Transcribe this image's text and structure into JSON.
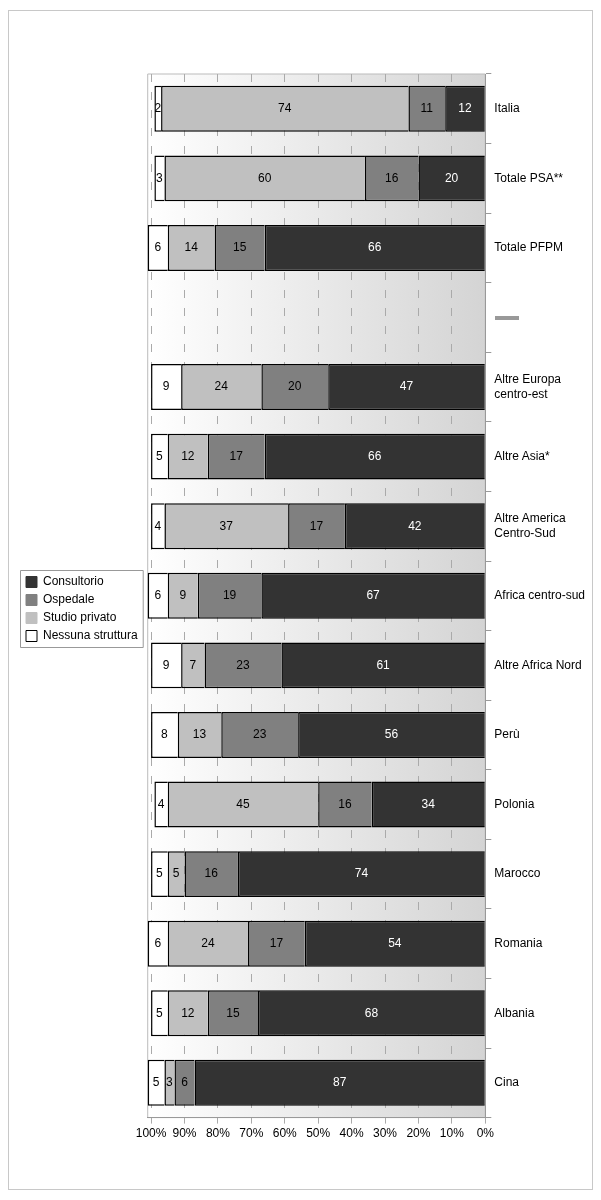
{
  "chart_data": {
    "type": "bar",
    "stacked": true,
    "orientation": "horizontal",
    "categories": [
      "Italia",
      "Totale PSA**",
      "Totale PFPM",
      null,
      "Altre Europa centro-est",
      "Altre Asia*",
      "Altre America Centro-Sud",
      "Africa centro-sud",
      "Altre Africa Nord",
      "Perù",
      "Polonia",
      "Marocco",
      "Romania",
      "Albania",
      "Cina"
    ],
    "series": [
      {
        "name": "Consultorio",
        "color": "#333333",
        "values": [
          12,
          20,
          66,
          null,
          47,
          66,
          42,
          67,
          61,
          56,
          34,
          74,
          54,
          68,
          87
        ]
      },
      {
        "name": "Ospedale",
        "color": "#808080",
        "values": [
          11,
          16,
          15,
          null,
          20,
          17,
          17,
          19,
          23,
          23,
          16,
          16,
          17,
          15,
          6
        ]
      },
      {
        "name": "Studio privato",
        "color": "#c0c0c0",
        "values": [
          74,
          60,
          14,
          null,
          24,
          12,
          37,
          9,
          7,
          13,
          45,
          5,
          24,
          12,
          3
        ]
      },
      {
        "name": "Nessuna struttura",
        "color": "#ffffff",
        "values": [
          2,
          3,
          6,
          null,
          9,
          5,
          4,
          6,
          9,
          8,
          4,
          5,
          6,
          5,
          5
        ]
      }
    ],
    "xlim": [
      101,
      0
    ],
    "xticks": [
      {
        "value": 100,
        "label": "100%"
      },
      {
        "value": 90,
        "label": "90%"
      },
      {
        "value": 80,
        "label": "80%"
      },
      {
        "value": 70,
        "label": "70%"
      },
      {
        "value": 60,
        "label": "60%"
      },
      {
        "value": 50,
        "label": "50%"
      },
      {
        "value": 40,
        "label": "40%"
      },
      {
        "value": 30,
        "label": "30%"
      },
      {
        "value": 20,
        "label": "20%"
      },
      {
        "value": 10,
        "label": "10%"
      },
      {
        "value": 0,
        "label": "0%"
      }
    ],
    "grid": "x",
    "legend": "left",
    "data_labels": true
  }
}
